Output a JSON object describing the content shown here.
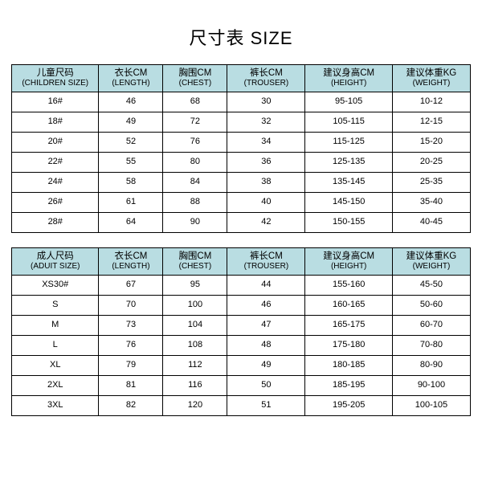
{
  "title": "尺寸表 SIZE",
  "colors": {
    "header_bg": "#b9dde2",
    "border": "#000000",
    "background": "#ffffff",
    "text": "#000000"
  },
  "children_table": {
    "type": "table",
    "columns": [
      {
        "cn": "儿童尺码",
        "en": "(CHILDREN SIZE)"
      },
      {
        "cn": "衣长CM",
        "en": "(LENGTH)"
      },
      {
        "cn": "胸围CM",
        "en": "(CHEST)"
      },
      {
        "cn": "裤长CM",
        "en": "(TROUSER)"
      },
      {
        "cn": "建议身高CM",
        "en": "(HEIGHT)"
      },
      {
        "cn": "建议体重KG",
        "en": "(WEIGHT)"
      }
    ],
    "rows": [
      [
        "16#",
        "46",
        "68",
        "30",
        "95-105",
        "10-12"
      ],
      [
        "18#",
        "49",
        "72",
        "32",
        "105-115",
        "12-15"
      ],
      [
        "20#",
        "52",
        "76",
        "34",
        "115-125",
        "15-20"
      ],
      [
        "22#",
        "55",
        "80",
        "36",
        "125-135",
        "20-25"
      ],
      [
        "24#",
        "58",
        "84",
        "38",
        "135-145",
        "25-35"
      ],
      [
        "26#",
        "61",
        "88",
        "40",
        "145-150",
        "35-40"
      ],
      [
        "28#",
        "64",
        "90",
        "42",
        "150-155",
        "40-45"
      ]
    ]
  },
  "adult_table": {
    "type": "table",
    "columns": [
      {
        "cn": "成人尺码",
        "en": "(ADUIT SIZE)"
      },
      {
        "cn": "衣长CM",
        "en": "(LENGTH)"
      },
      {
        "cn": "胸围CM",
        "en": "(CHEST)"
      },
      {
        "cn": "裤长CM",
        "en": "(TROUSER)"
      },
      {
        "cn": "建议身高CM",
        "en": "(HEIGHT)"
      },
      {
        "cn": "建议体重KG",
        "en": "(WEIGHT)"
      }
    ],
    "rows": [
      [
        "XS30#",
        "67",
        "95",
        "44",
        "155-160",
        "45-50"
      ],
      [
        "S",
        "70",
        "100",
        "46",
        "160-165",
        "50-60"
      ],
      [
        "M",
        "73",
        "104",
        "47",
        "165-175",
        "60-70"
      ],
      [
        "L",
        "76",
        "108",
        "48",
        "175-180",
        "70-80"
      ],
      [
        "XL",
        "79",
        "112",
        "49",
        "180-185",
        "80-90"
      ],
      [
        "2XL",
        "81",
        "116",
        "50",
        "185-195",
        "90-100"
      ],
      [
        "3XL",
        "82",
        "120",
        "51",
        "195-205",
        "100-105"
      ]
    ]
  }
}
